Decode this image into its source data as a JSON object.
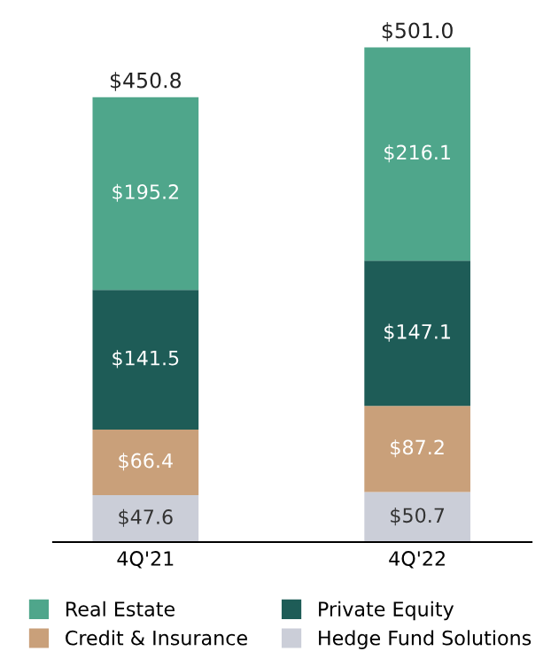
{
  "chart_data": {
    "type": "bar",
    "stacked": true,
    "categories": [
      "4Q'21",
      "4Q'22"
    ],
    "series": [
      {
        "name": "Hedge Fund Solutions",
        "color": "#cbced8",
        "values": [
          47.6,
          50.7
        ],
        "value_labels": [
          "$47.6",
          "$50.7"
        ]
      },
      {
        "name": "Credit & Insurance",
        "color": "#c9a07a",
        "values": [
          66.4,
          87.2
        ],
        "value_labels": [
          "$66.4",
          "$87.2"
        ]
      },
      {
        "name": "Private Equity",
        "color": "#1e5c57",
        "values": [
          141.5,
          147.1
        ],
        "value_labels": [
          "$141.5",
          "$147.1"
        ]
      },
      {
        "name": "Real Estate",
        "color": "#4fa68b",
        "values": [
          195.2,
          216.1
        ],
        "value_labels": [
          "$195.2",
          "$216.1"
        ]
      }
    ],
    "totals": [
      "$450.8",
      "$501.0"
    ],
    "legend": "bottom",
    "grid": false
  }
}
